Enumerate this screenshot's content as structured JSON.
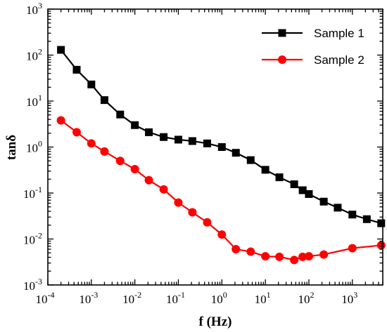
{
  "chart_data": {
    "type": "line",
    "xlabel": "f (Hz)",
    "ylabel": "tanδ",
    "xscale": "log",
    "yscale": "log",
    "xlim": [
      0.0001,
      5000
    ],
    "ylim": [
      0.001,
      1000
    ],
    "grid": false,
    "legend_position": "top-right",
    "x_ticks": [
      {
        "base": "10",
        "exp": "-4",
        "value": 0.0001
      },
      {
        "base": "10",
        "exp": "-3",
        "value": 0.001
      },
      {
        "base": "10",
        "exp": "-2",
        "value": 0.01
      },
      {
        "base": "10",
        "exp": "-1",
        "value": 0.1
      },
      {
        "base": "10",
        "exp": "0",
        "value": 1
      },
      {
        "base": "10",
        "exp": "1",
        "value": 10
      },
      {
        "base": "10",
        "exp": "2",
        "value": 100
      },
      {
        "base": "10",
        "exp": "3",
        "value": 1000
      }
    ],
    "y_ticks": [
      {
        "base": "10",
        "exp": "-3",
        "value": 0.001
      },
      {
        "base": "10",
        "exp": "-2",
        "value": 0.01
      },
      {
        "base": "10",
        "exp": "-1",
        "value": 0.1
      },
      {
        "base": "10",
        "exp": "0",
        "value": 1
      },
      {
        "base": "10",
        "exp": "1",
        "value": 10
      },
      {
        "base": "10",
        "exp": "2",
        "value": 100
      },
      {
        "base": "10",
        "exp": "3",
        "value": 1000
      }
    ],
    "series": [
      {
        "name": "Sample 1",
        "color": "#000000",
        "marker": "square",
        "x": [
          0.0002,
          0.00046,
          0.001,
          0.002,
          0.0046,
          0.01,
          0.021,
          0.046,
          0.1,
          0.21,
          0.46,
          1,
          2.1,
          4.6,
          10,
          21,
          46,
          72,
          100,
          220,
          460,
          1000,
          2150,
          4600
        ],
        "y": [
          130,
          48,
          23,
          10.5,
          5.1,
          3.0,
          2.1,
          1.65,
          1.45,
          1.35,
          1.2,
          1.0,
          0.75,
          0.52,
          0.32,
          0.22,
          0.155,
          0.115,
          0.095,
          0.065,
          0.048,
          0.034,
          0.027,
          0.022
        ]
      },
      {
        "name": "Sample 2",
        "color": "#ff0000",
        "marker": "circle",
        "x": [
          0.0002,
          0.00046,
          0.001,
          0.002,
          0.0046,
          0.01,
          0.021,
          0.046,
          0.1,
          0.21,
          0.46,
          1,
          2.1,
          4.6,
          10,
          21,
          46,
          72,
          100,
          220,
          1000,
          4600
        ],
        "y": [
          3.8,
          2.1,
          1.2,
          0.8,
          0.5,
          0.33,
          0.19,
          0.12,
          0.062,
          0.038,
          0.023,
          0.0125,
          0.006,
          0.0053,
          0.0042,
          0.0041,
          0.0035,
          0.0041,
          0.0042,
          0.0046,
          0.0063,
          0.0073
        ]
      }
    ]
  }
}
